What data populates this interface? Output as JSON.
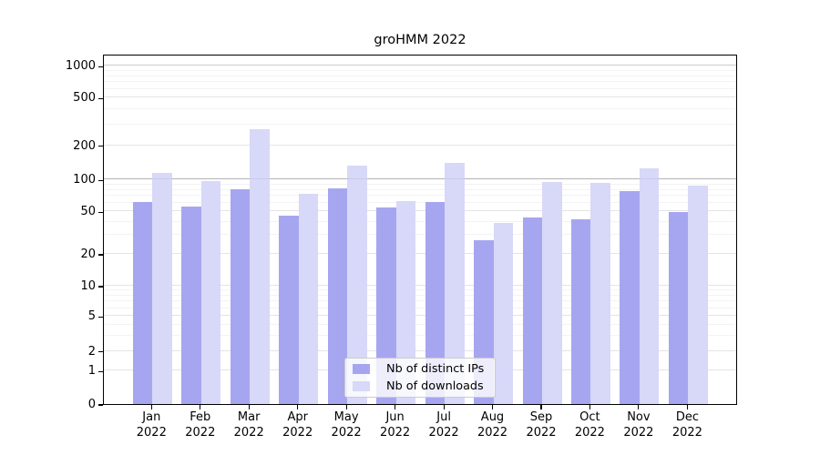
{
  "title": "groHMM 2022",
  "chart_data": {
    "type": "bar",
    "title": "groHMM 2022",
    "categories": [
      {
        "month": "Jan",
        "year": "2022"
      },
      {
        "month": "Feb",
        "year": "2022"
      },
      {
        "month": "Mar",
        "year": "2022"
      },
      {
        "month": "Apr",
        "year": "2022"
      },
      {
        "month": "May",
        "year": "2022"
      },
      {
        "month": "Jun",
        "year": "2022"
      },
      {
        "month": "Jul",
        "year": "2022"
      },
      {
        "month": "Aug",
        "year": "2022"
      },
      {
        "month": "Sep",
        "year": "2022"
      },
      {
        "month": "Oct",
        "year": "2022"
      },
      {
        "month": "Nov",
        "year": "2022"
      },
      {
        "month": "Dec",
        "year": "2022"
      }
    ],
    "series": [
      {
        "name": "Nb of distinct IPs",
        "color": "#a6a6f0",
        "values": [
          61,
          56,
          81,
          46,
          82,
          55,
          61,
          27,
          44,
          42,
          78,
          49
        ]
      },
      {
        "name": "Nb of downloads",
        "color": "#d8d8f8",
        "values": [
          115,
          97,
          275,
          74,
          132,
          62,
          140,
          39,
          95,
          93,
          126,
          88
        ]
      }
    ],
    "xlabel": "",
    "ylabel": "",
    "y_axis": {
      "scale": "symlog",
      "ticks": [
        0,
        1,
        2,
        5,
        10,
        20,
        50,
        100,
        200,
        500,
        1000
      ],
      "minor_gridlines": [
        3,
        4,
        6,
        7,
        8,
        9,
        30,
        40,
        60,
        70,
        80,
        90,
        300,
        400,
        600,
        700,
        800,
        900
      ],
      "range": [
        0,
        1250
      ]
    },
    "grid": "horizontal major and minor, 100 line emphasized",
    "legend": {
      "position": "bottom-center",
      "entries": [
        "Nb of distinct IPs",
        "Nb of downloads"
      ]
    }
  }
}
